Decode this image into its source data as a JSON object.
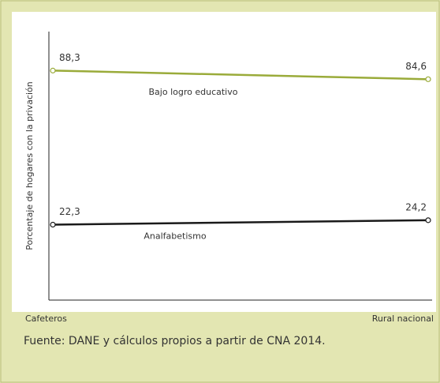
{
  "chart_data": {
    "type": "line",
    "y_label": "Porcentaje de hogares con la privación",
    "categories": [
      "Cafeteros",
      "Rural nacional"
    ],
    "series": [
      {
        "name": "Bajo logro educativo",
        "color": "#9aab3a",
        "values": [
          88.3,
          84.6
        ],
        "value_labels": [
          "88,3",
          "84,6"
        ]
      },
      {
        "name": "Analfabetismo",
        "color": "#1a1a1a",
        "values": [
          22.3,
          24.2
        ],
        "value_labels": [
          "22,3",
          "24,2"
        ]
      }
    ],
    "ylim": [
      -10,
      105
    ],
    "source": "Fuente: DANE y cálculos propios a partir de CNA 2014."
  }
}
